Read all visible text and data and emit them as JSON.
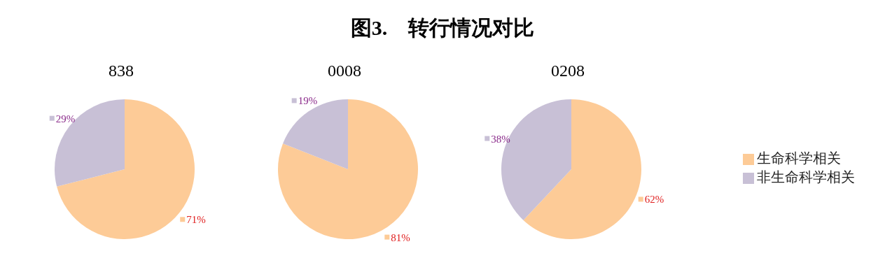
{
  "chart_data": [
    {
      "type": "pie",
      "title": "838",
      "annotations": [
        "图3.　转行情况对比"
      ],
      "values": [
        71,
        29
      ],
      "colors": [
        "#fdcb97",
        "#c8c0d6"
      ],
      "value_labels": [
        "71%",
        "29%"
      ]
    },
    {
      "type": "pie",
      "title": "0008",
      "values": [
        81,
        19
      ],
      "colors": [
        "#fdcb97",
        "#c8c0d6"
      ],
      "value_labels": [
        "81%",
        "19%"
      ]
    },
    {
      "type": "pie",
      "title": "0208",
      "categories": [
        "生命科学相关",
        "非生命科学相关"
      ],
      "values": [
        62,
        38
      ],
      "colors": [
        "#fdcb97",
        "#c8c0d6"
      ],
      "value_labels": [
        "62%",
        "38%"
      ],
      "legend": "right"
    }
  ]
}
